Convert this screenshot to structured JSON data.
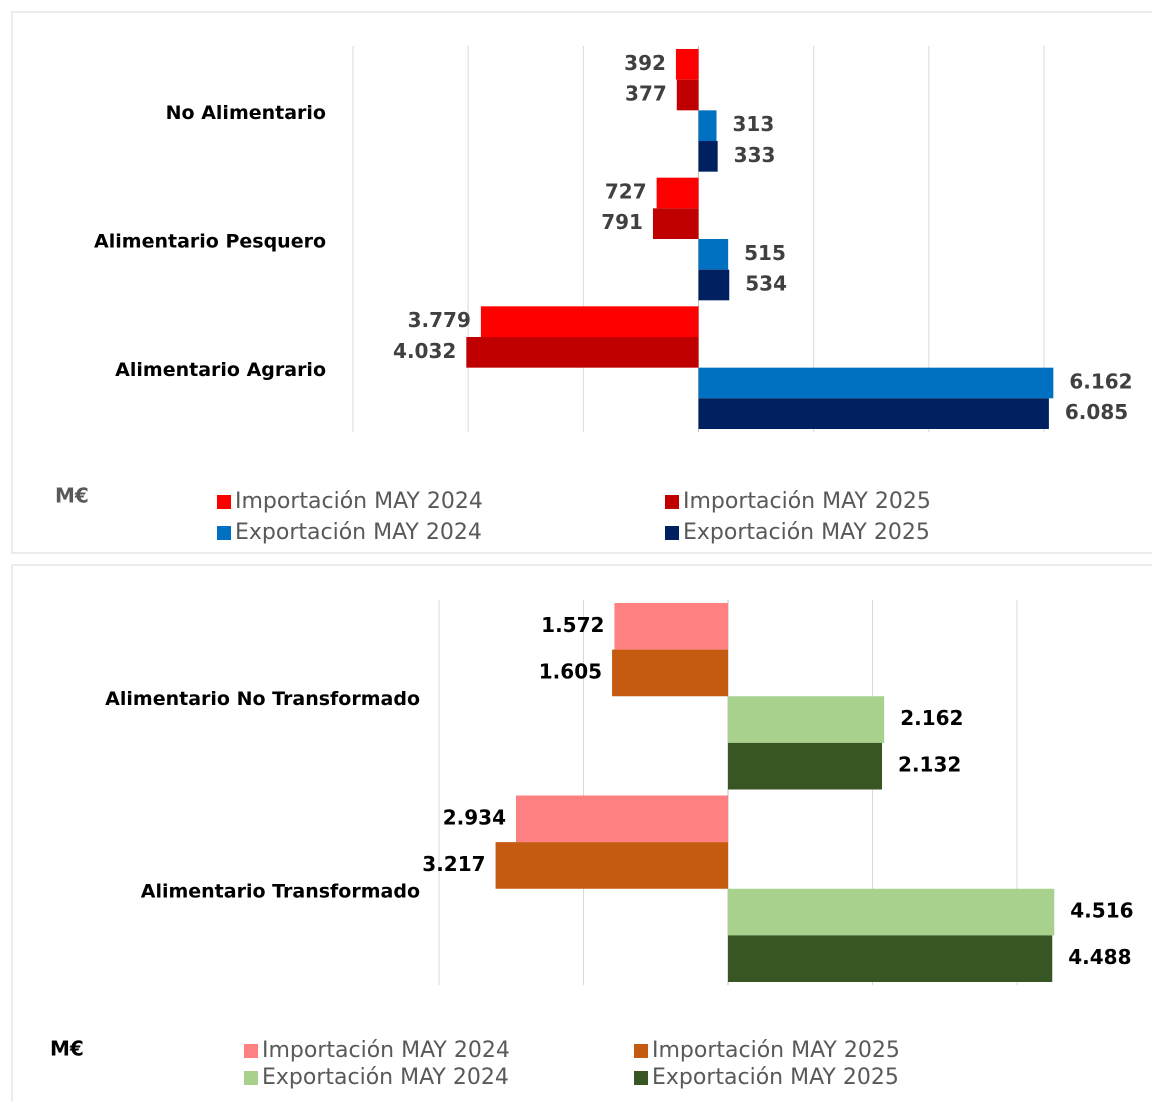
{
  "chart_data": [
    {
      "type": "bar",
      "orientation": "horizontal",
      "unit_label": "M€",
      "categories": [
        "No Alimentario",
        "Alimentario Pesquero",
        "Alimentario Agrario"
      ],
      "xlim": [
        -6000,
        6000
      ],
      "xticks": [
        -6000,
        -4000,
        -2000,
        0,
        2000,
        4000,
        6000
      ],
      "tick_labels": false,
      "grid": true,
      "label_color": "#404040",
      "unit_color": "#595959",
      "series": [
        {
          "name": "Importación MAY 2024",
          "color": "#ff0000",
          "direction": "left",
          "values": [
            392,
            727,
            3779
          ],
          "value_labels": [
            "392",
            "727",
            "3.779"
          ]
        },
        {
          "name": "Importación MAY 2025",
          "color": "#c00000",
          "direction": "left",
          "values": [
            377,
            791,
            4032
          ],
          "value_labels": [
            "377",
            "791",
            "4.032"
          ]
        },
        {
          "name": "Exportación MAY 2024",
          "color": "#0070c0",
          "direction": "right",
          "values": [
            313,
            515,
            6162
          ],
          "value_labels": [
            "313",
            "515",
            "6.162"
          ]
        },
        {
          "name": "Exportación MAY 2025",
          "color": "#002060",
          "direction": "right",
          "values": [
            333,
            534,
            6085
          ],
          "value_labels": [
            "333",
            "534",
            "6.085"
          ]
        }
      ]
    },
    {
      "type": "bar",
      "orientation": "horizontal",
      "unit_label": "M€",
      "categories": [
        "Alimentario No Transformado",
        "Alimentario Transformado"
      ],
      "xlim": [
        -4000,
        4000
      ],
      "xticks": [
        -4000,
        -2000,
        0,
        2000,
        4000
      ],
      "tick_labels": false,
      "grid": true,
      "label_color": "#000000",
      "unit_color": "#000000",
      "series": [
        {
          "name": "Importación MAY 2024",
          "color": "#ff8080",
          "direction": "left",
          "values": [
            1572,
            2934
          ],
          "value_labels": [
            "1.572",
            "2.934"
          ]
        },
        {
          "name": "Importación MAY 2025",
          "color": "#c55a11",
          "direction": "left",
          "values": [
            1605,
            3217
          ],
          "value_labels": [
            "1.605",
            "3.217"
          ]
        },
        {
          "name": "Exportación MAY 2024",
          "color": "#a9d18e",
          "direction": "right",
          "values": [
            2162,
            4516
          ],
          "value_labels": [
            "2.162",
            "4.516"
          ]
        },
        {
          "name": "Exportación MAY 2025",
          "color": "#375623",
          "direction": "right",
          "values": [
            2132,
            4488
          ],
          "value_labels": [
            "2.132",
            "4.488"
          ]
        }
      ]
    }
  ]
}
